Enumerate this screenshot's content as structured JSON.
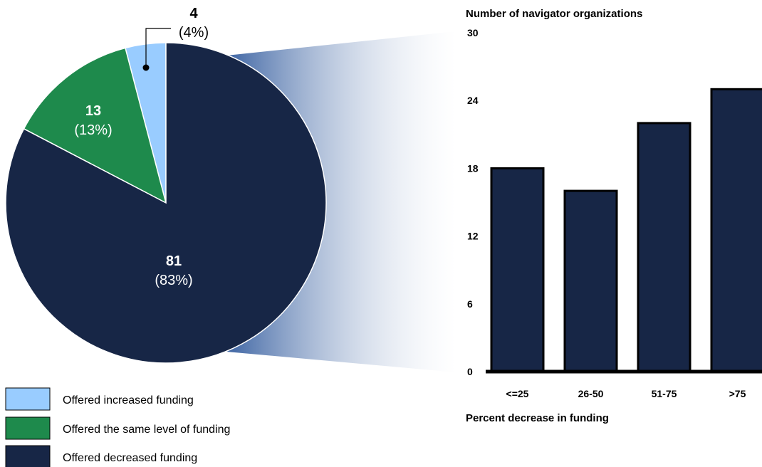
{
  "chart_data": [
    {
      "type": "pie",
      "slices": [
        {
          "label": "Offered increased funding",
          "value": 4,
          "percent_label": "(4%)",
          "color": "#99ccff"
        },
        {
          "label": "Offered the same level of funding",
          "value": 13,
          "percent_label": "(13%)",
          "color": "#1e8a4c"
        },
        {
          "label": "Offered decreased funding",
          "value": 81,
          "percent_label": "(83%)",
          "color": "#172646"
        }
      ],
      "legend_position": "bottom-left",
      "exploded_slice": "Offered decreased funding"
    },
    {
      "type": "bar",
      "categories": [
        "<=25",
        "26-50",
        "51-75",
        ">75"
      ],
      "values": [
        18,
        16,
        22,
        25
      ],
      "ylabel": "Number of navigator organizations",
      "xlabel": "Percent decrease in funding",
      "ylim": [
        0,
        30
      ],
      "yticks": [
        0,
        6,
        12,
        18,
        24,
        30
      ],
      "bar_color": "#172646",
      "grid": false
    }
  ]
}
